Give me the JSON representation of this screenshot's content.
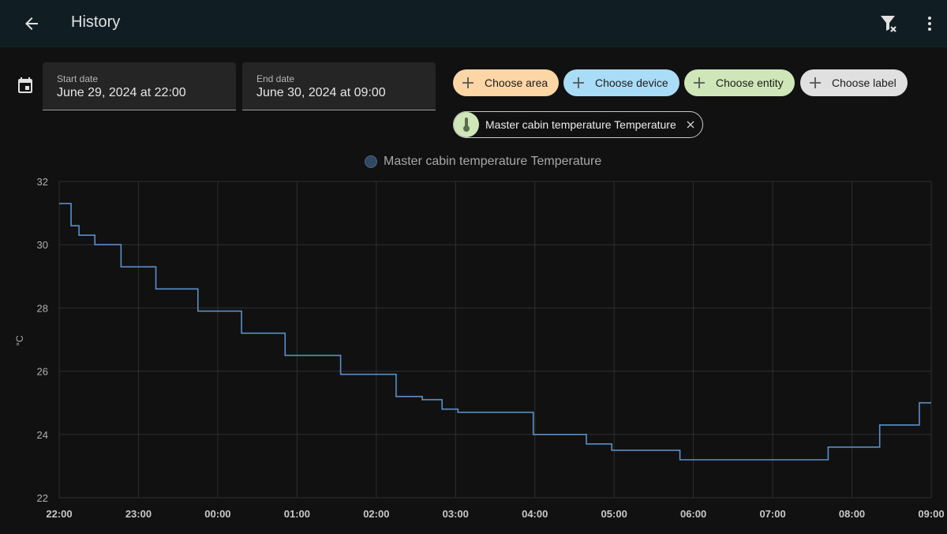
{
  "header": {
    "title": "History",
    "icons": {
      "back": "arrow-left-icon",
      "filter_clear": "filter-remove-icon",
      "menu": "dots-vertical-icon"
    }
  },
  "date_range": {
    "start": {
      "label": "Start date",
      "value": "June 29, 2024 at 22:00"
    },
    "end": {
      "label": "End date",
      "value": "June 30, 2024 at 09:00"
    },
    "icon": "calendar-icon"
  },
  "target_chips": [
    {
      "label": "Choose area",
      "color": "#fdd6a6"
    },
    {
      "label": "Choose device",
      "color": "#a9dcf7"
    },
    {
      "label": "Choose entity",
      "color": "#cfe7b8"
    },
    {
      "label": "Choose label",
      "color": "#e0e0e0"
    }
  ],
  "selected_entity": {
    "label": "Master cabin temperature Temperature",
    "icon": "thermometer-icon"
  },
  "legend": {
    "label": "Master cabin temperature Temperature",
    "color": "#5b8fc9"
  },
  "chart_data": {
    "type": "line",
    "step": true,
    "ylabel": "°C",
    "ylim": [
      22,
      32
    ],
    "yticks": [
      22,
      24,
      26,
      28,
      30,
      32
    ],
    "xlim": [
      0,
      11
    ],
    "x_tick_labels": [
      "22:00",
      "23:00",
      "00:00",
      "01:00",
      "02:00",
      "03:00",
      "04:00",
      "05:00",
      "06:00",
      "07:00",
      "08:00",
      "09:00"
    ],
    "grid": true,
    "series": [
      {
        "name": "Master cabin temperature Temperature",
        "color": "#5b8fc9",
        "x": [
          0,
          0.15,
          0.25,
          0.45,
          0.78,
          1.22,
          1.75,
          2.3,
          2.85,
          3.55,
          4.25,
          4.58,
          4.83,
          5.03,
          5.98,
          6.65,
          6.97,
          7.83,
          9.7,
          10.35,
          10.85,
          11.0
        ],
        "y": [
          31.3,
          30.6,
          30.3,
          30.0,
          29.3,
          28.6,
          27.9,
          27.2,
          26.5,
          25.9,
          25.2,
          25.1,
          24.8,
          24.7,
          24.0,
          23.7,
          23.5,
          23.2,
          23.6,
          24.3,
          25.0,
          25.0
        ]
      }
    ]
  }
}
